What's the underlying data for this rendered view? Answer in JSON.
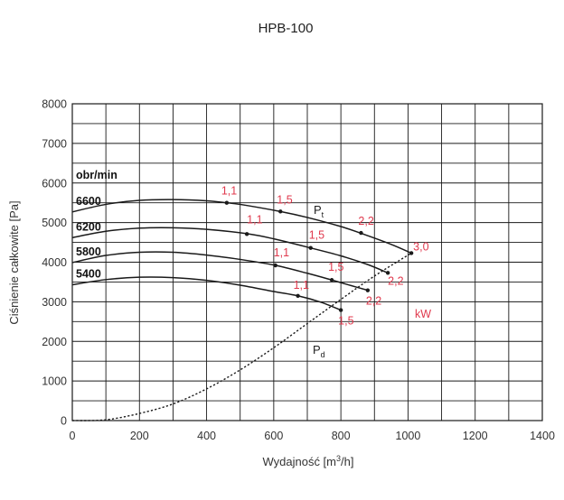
{
  "chart_data": {
    "type": "line",
    "title": "HPB-100",
    "xlabel_main": "Wydajność [m",
    "xlabel_sup": "3",
    "xlabel_end": "/h]",
    "ylabel": "Ciśnienie całkowite [Pa]",
    "xlim": [
      0,
      1400
    ],
    "ylim": [
      0,
      8000
    ],
    "x_ticks": [
      "0",
      "200",
      "400",
      "600",
      "800",
      "1000",
      "1200",
      "1400"
    ],
    "y_ticks": [
      "0",
      "1000",
      "2000",
      "3000",
      "4000",
      "5000",
      "6000",
      "7000",
      "8000"
    ],
    "grid": true,
    "rpm_header": "obr/min",
    "series": [
      {
        "name": "6600",
        "x": [
          0,
          100,
          200,
          300,
          400,
          460,
          500,
          620,
          700,
          800,
          870,
          950,
          1010
        ],
        "y": [
          5270,
          5460,
          5560,
          5580,
          5550,
          5500,
          5460,
          5280,
          5130,
          4900,
          4700,
          4450,
          4230
        ],
        "markers": [
          {
            "x": 460,
            "y": 5500,
            "label": "1,1"
          },
          {
            "x": 620,
            "y": 5280,
            "label": "1,5"
          },
          {
            "x": 860,
            "y": 4740,
            "label": "2,2"
          },
          {
            "x": 1010,
            "y": 4230,
            "label": "3,0"
          }
        ]
      },
      {
        "name": "6200",
        "x": [
          0,
          100,
          200,
          300,
          400,
          520,
          600,
          710,
          800,
          880,
          940
        ],
        "y": [
          4620,
          4780,
          4860,
          4870,
          4830,
          4720,
          4590,
          4360,
          4160,
          3940,
          3730
        ],
        "markers": [
          {
            "x": 520,
            "y": 4710,
            "label": "1,1"
          },
          {
            "x": 710,
            "y": 4360,
            "label": "1,5"
          },
          {
            "x": 940,
            "y": 3730,
            "label": "2,2"
          }
        ]
      },
      {
        "name": "5800",
        "x": [
          0,
          100,
          200,
          300,
          400,
          500,
          605,
          700,
          773,
          830,
          880
        ],
        "y": [
          3990,
          4170,
          4250,
          4250,
          4180,
          4070,
          3920,
          3720,
          3550,
          3410,
          3290
        ],
        "markers": [
          {
            "x": 605,
            "y": 3920,
            "label": "1,1"
          },
          {
            "x": 773,
            "y": 3550,
            "label": "1,5"
          },
          {
            "x": 880,
            "y": 3290,
            "label": "2,2"
          }
        ]
      },
      {
        "name": "5400",
        "x": [
          0,
          100,
          200,
          300,
          400,
          500,
          600,
          672,
          740,
          800
        ],
        "y": [
          3430,
          3560,
          3620,
          3610,
          3540,
          3420,
          3260,
          3150,
          2990,
          2790
        ],
        "markers": [
          {
            "x": 672,
            "y": 3150,
            "label": "1,1"
          },
          {
            "x": 800,
            "y": 2790,
            "label": "1,5"
          }
        ]
      }
    ],
    "pd_curve": {
      "x": [
        0,
        100,
        200,
        300,
        400,
        500,
        600,
        700,
        800,
        900,
        1010
      ],
      "y": [
        0,
        20,
        180,
        420,
        800,
        1280,
        1840,
        2450,
        3060,
        3650,
        4230
      ]
    },
    "pt_symbol": "P",
    "pt_sub": "t",
    "pd_symbol": "P",
    "pd_sub": "d",
    "unit_label": "kW",
    "colors": {
      "curve": "#1a1a1a",
      "grid": "#1a1a1a",
      "power_label": "#e03a4e",
      "marker": "#1a1a1a"
    }
  }
}
